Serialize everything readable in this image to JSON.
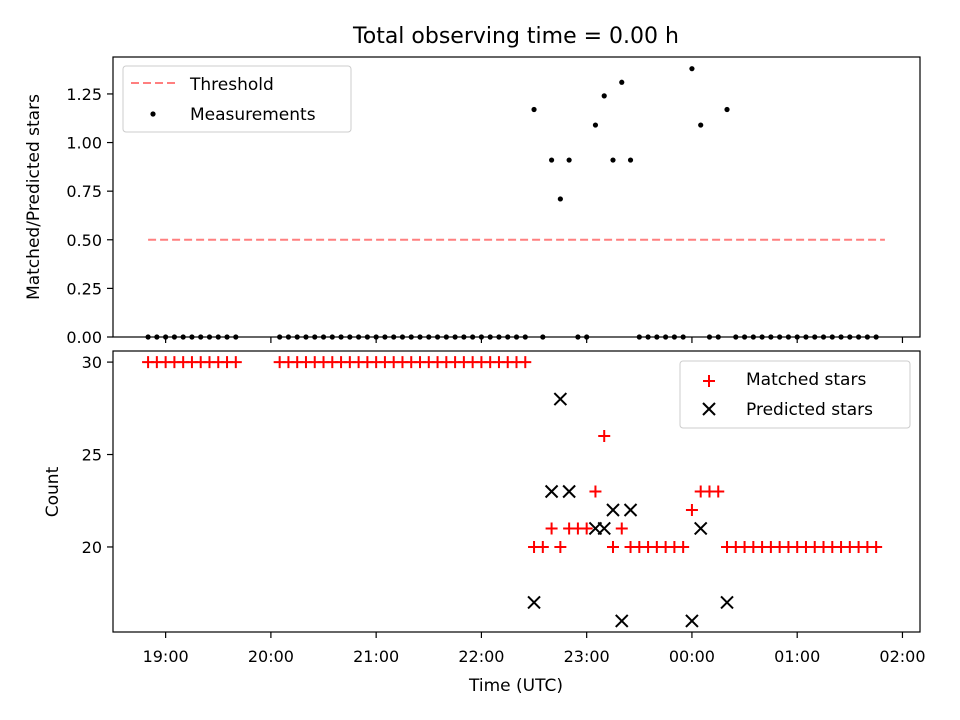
{
  "chart_data": [
    {
      "type": "scatter",
      "title": "Total observing time = 0.00 h",
      "ylabel": "Matched/Predicted stars",
      "xlabel": "",
      "ylim": [
        0,
        1.44
      ],
      "yticks": [
        "0.00",
        "0.25",
        "0.50",
        "0.75",
        "1.00",
        "1.25"
      ],
      "threshold": {
        "name": "Threshold",
        "value": 0.5,
        "x_start": "18:50",
        "x_end": "01:50",
        "color": "#ff7f7f"
      },
      "measurements": {
        "name": "Measurements",
        "color": "#000000",
        "x": [
          "18:50",
          "18:55",
          "19:00",
          "19:05",
          "19:10",
          "19:15",
          "19:20",
          "19:25",
          "19:30",
          "19:35",
          "19:40",
          "20:05",
          "20:10",
          "20:15",
          "20:20",
          "20:25",
          "20:30",
          "20:35",
          "20:40",
          "20:45",
          "20:50",
          "20:55",
          "21:00",
          "21:05",
          "21:10",
          "21:15",
          "21:20",
          "21:25",
          "21:30",
          "21:35",
          "21:40",
          "21:45",
          "21:50",
          "21:55",
          "22:00",
          "22:05",
          "22:10",
          "22:15",
          "22:20",
          "22:25",
          "22:30",
          "22:35",
          "22:40",
          "22:45",
          "22:50",
          "22:55",
          "23:00",
          "23:05",
          "23:10",
          "23:15",
          "23:20",
          "23:25",
          "23:30",
          "23:35",
          "23:40",
          "23:45",
          "23:50",
          "23:55",
          "00:00",
          "00:05",
          "00:10",
          "00:15",
          "00:20",
          "00:25",
          "00:30",
          "00:35",
          "00:40",
          "00:45",
          "00:50",
          "00:55",
          "01:00",
          "01:05",
          "01:10",
          "01:15",
          "01:20",
          "01:25",
          "01:30",
          "01:35",
          "01:40",
          "01:45"
        ],
        "y": [
          0,
          0,
          0,
          0,
          0,
          0,
          0,
          0,
          0,
          0,
          0,
          0,
          0,
          0,
          0,
          0,
          0,
          0,
          0,
          0,
          0,
          0,
          0,
          0,
          0,
          0,
          0,
          0,
          0,
          0,
          0,
          0,
          0,
          0,
          0,
          0,
          0,
          0,
          0,
          0,
          1.17,
          0,
          0.91,
          0.71,
          0.91,
          0,
          0,
          1.09,
          1.24,
          0.91,
          1.31,
          0.91,
          0,
          0,
          0,
          0,
          0,
          0,
          1.38,
          1.09,
          0,
          0,
          1.17,
          0,
          0,
          0,
          0,
          0,
          0,
          0,
          0,
          0,
          0,
          0,
          0,
          0,
          0,
          0,
          0,
          0
        ]
      }
    },
    {
      "type": "scatter",
      "title": "",
      "xlabel": "Time (UTC)",
      "ylabel": "Count",
      "ylim": [
        15.4,
        30.6
      ],
      "yticks": [
        "20",
        "25",
        "30"
      ],
      "xticks": [
        "19:00",
        "20:00",
        "21:00",
        "22:00",
        "23:00",
        "00:00",
        "01:00",
        "02:00"
      ],
      "series": [
        {
          "name": "Matched stars",
          "marker": "plus",
          "color": "#ff0000",
          "x": [
            "18:50",
            "18:55",
            "19:00",
            "19:05",
            "19:10",
            "19:15",
            "19:20",
            "19:25",
            "19:30",
            "19:35",
            "19:40",
            "20:05",
            "20:10",
            "20:15",
            "20:20",
            "20:25",
            "20:30",
            "20:35",
            "20:40",
            "20:45",
            "20:50",
            "20:55",
            "21:00",
            "21:05",
            "21:10",
            "21:15",
            "21:20",
            "21:25",
            "21:30",
            "21:35",
            "21:40",
            "21:45",
            "21:50",
            "21:55",
            "22:00",
            "22:05",
            "22:10",
            "22:15",
            "22:20",
            "22:25",
            "22:30",
            "22:35",
            "22:40",
            "22:45",
            "22:50",
            "22:55",
            "23:00",
            "23:05",
            "23:10",
            "23:15",
            "23:20",
            "23:25",
            "23:30",
            "23:35",
            "23:40",
            "23:45",
            "23:50",
            "23:55",
            "00:00",
            "00:05",
            "00:10",
            "00:15",
            "00:20",
            "00:25",
            "00:30",
            "00:35",
            "00:40",
            "00:45",
            "00:50",
            "00:55",
            "01:00",
            "01:05",
            "01:10",
            "01:15",
            "01:20",
            "01:25",
            "01:30",
            "01:35",
            "01:40",
            "01:45"
          ],
          "y": [
            30,
            30,
            30,
            30,
            30,
            30,
            30,
            30,
            30,
            30,
            30,
            30,
            30,
            30,
            30,
            30,
            30,
            30,
            30,
            30,
            30,
            30,
            30,
            30,
            30,
            30,
            30,
            30,
            30,
            30,
            30,
            30,
            30,
            30,
            30,
            30,
            30,
            30,
            30,
            30,
            20,
            20,
            21,
            20,
            21,
            21,
            21,
            23,
            26,
            20,
            21,
            20,
            20,
            20,
            20,
            20,
            20,
            20,
            22,
            23,
            23,
            23,
            20,
            20,
            20,
            20,
            20,
            20,
            20,
            20,
            20,
            20,
            20,
            20,
            20,
            20,
            20,
            20,
            20,
            20
          ]
        },
        {
          "name": "Predicted stars",
          "marker": "x",
          "color": "#000000",
          "x": [
            "22:30",
            "22:40",
            "22:45",
            "22:50",
            "23:05",
            "23:10",
            "23:15",
            "23:20",
            "23:25",
            "00:00",
            "00:05",
            "00:20"
          ],
          "y": [
            17,
            23,
            28,
            23,
            21,
            21,
            22,
            16,
            22,
            16,
            21,
            17
          ]
        }
      ]
    }
  ]
}
